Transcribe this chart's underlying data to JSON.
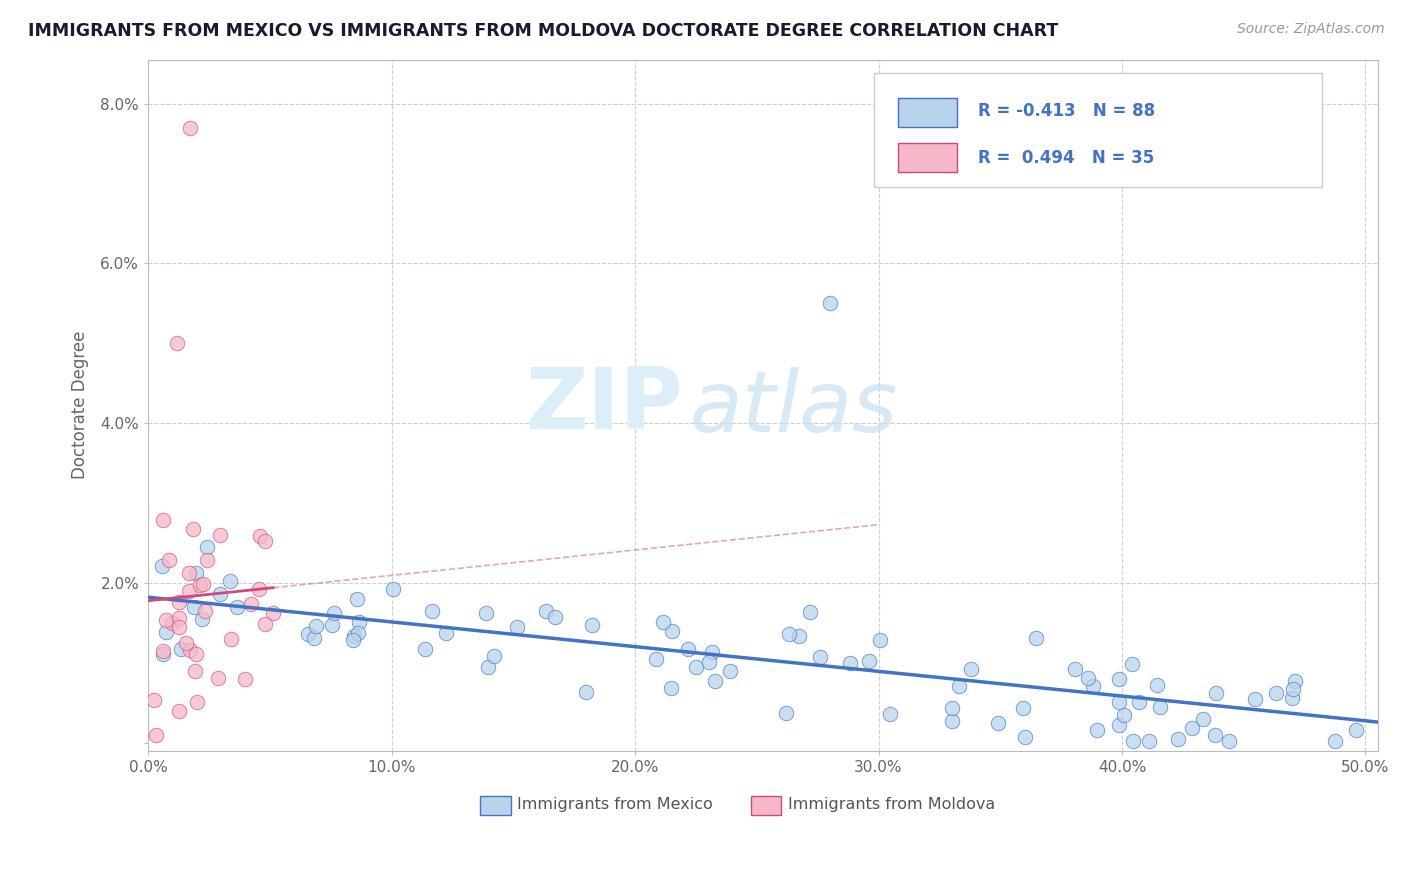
{
  "title": "IMMIGRANTS FROM MEXICO VS IMMIGRANTS FROM MOLDOVA DOCTORATE DEGREE CORRELATION CHART",
  "source": "Source: ZipAtlas.com",
  "ylabel": "Doctorate Degree",
  "xlim": [
    0.0,
    0.505
  ],
  "ylim": [
    -0.001,
    0.0855
  ],
  "yticks": [
    0.0,
    0.02,
    0.04,
    0.06,
    0.08
  ],
  "ytick_labels": [
    "",
    "2.0%",
    "4.0%",
    "6.0%",
    "8.0%"
  ],
  "xticks": [
    0.0,
    0.1,
    0.2,
    0.3,
    0.4,
    0.5
  ],
  "xtick_labels": [
    "0.0%",
    "10.0%",
    "20.0%",
    "30.0%",
    "40.0%",
    "50.0%"
  ],
  "mexico_color": "#b8d4ea",
  "moldova_color": "#f5b8c8",
  "mexico_line_color": "#4472c4",
  "moldova_line_color": "#d4477a",
  "mexico_R": -0.413,
  "mexico_N": 88,
  "moldova_R": 0.494,
  "moldova_N": 35,
  "legend_label_mexico": "Immigrants from Mexico",
  "legend_label_moldova": "Immigrants from Moldova",
  "watermark_zip": "ZIP",
  "watermark_atlas": "atlas",
  "background_color": "#ffffff",
  "grid_color": "#d0d0d0",
  "title_color": "#1a1a2e",
  "axis_color": "#666666"
}
